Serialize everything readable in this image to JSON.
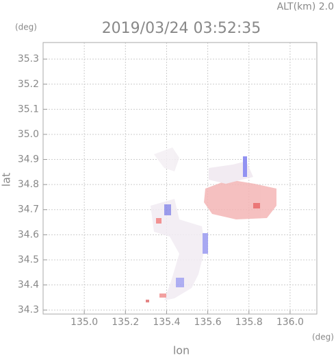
{
  "chart_data": {
    "type": "map",
    "title": "2019/03/24 03:52:35",
    "subtitle": "ALT(km) 2.0",
    "xlabel": "lon",
    "ylabel": "lat",
    "x_unit": "(deg)",
    "y_unit": "(deg)",
    "xlim": [
      134.8,
      136.13
    ],
    "ylim": [
      34.284,
      35.366
    ],
    "xticks": [
      {
        "value": 135.0,
        "label": "135.0"
      },
      135.2,
      135.4,
      135.6,
      135.8,
      {
        "value": 136.0,
        "label": "136.0"
      }
    ],
    "yticks": [
      34.3,
      34.4,
      34.5,
      34.6,
      34.7,
      34.8,
      34.9,
      {
        "value": 35.0,
        "label": "35.0"
      },
      35.1,
      35.2,
      35.3
    ],
    "grid": true
  }
}
